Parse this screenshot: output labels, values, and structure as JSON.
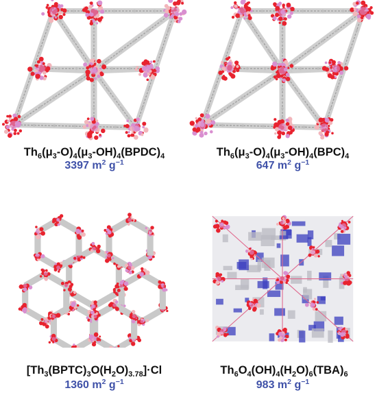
{
  "panels": [
    {
      "formula_parts": [
        {
          "t": "Th",
          "s": "n"
        },
        {
          "t": "6",
          "s": "sub"
        },
        {
          "t": "(μ",
          "s": "n"
        },
        {
          "t": "3",
          "s": "sub"
        },
        {
          "t": "-O)",
          "s": "n"
        },
        {
          "t": "4",
          "s": "sub"
        },
        {
          "t": "(μ",
          "s": "n"
        },
        {
          "t": "3",
          "s": "sub"
        },
        {
          "t": "-OH)",
          "s": "n"
        },
        {
          "t": "4",
          "s": "sub"
        },
        {
          "t": "(BPDC)",
          "s": "n"
        },
        {
          "t": "4",
          "s": "sub"
        }
      ],
      "area_value": "3397",
      "area_unit": "m",
      "area_unit_exp": "2",
      "area_g": "g",
      "area_g_exp": "−1",
      "colors": {
        "oxygen": "#e8232f",
        "thorium": "#d98fd0",
        "carbon": "#a9a9a9"
      }
    },
    {
      "formula_parts": [
        {
          "t": "Th",
          "s": "n"
        },
        {
          "t": "6",
          "s": "sub"
        },
        {
          "t": "(μ",
          "s": "n"
        },
        {
          "t": "3",
          "s": "sub"
        },
        {
          "t": "-O)",
          "s": "n"
        },
        {
          "t": "4",
          "s": "sub"
        },
        {
          "t": "(μ",
          "s": "n"
        },
        {
          "t": "3",
          "s": "sub"
        },
        {
          "t": "-OH)",
          "s": "n"
        },
        {
          "t": "4",
          "s": "sub"
        },
        {
          "t": "(BPC)",
          "s": "n"
        },
        {
          "t": "4",
          "s": "sub"
        }
      ],
      "area_value": "647",
      "area_unit": "m",
      "area_unit_exp": "2",
      "area_g": "g",
      "area_g_exp": "−1",
      "colors": {
        "oxygen": "#e8232f",
        "thorium": "#d98fd0",
        "carbon": "#a9a9a9"
      }
    },
    {
      "formula_parts": [
        {
          "t": "[Th",
          "s": "n"
        },
        {
          "t": "3",
          "s": "sub"
        },
        {
          "t": "(BPTC)",
          "s": "n"
        },
        {
          "t": "3",
          "s": "sub"
        },
        {
          "t": "O(H",
          "s": "n"
        },
        {
          "t": "2",
          "s": "sub"
        },
        {
          "t": "O)",
          "s": "n"
        },
        {
          "t": "3.78",
          "s": "sub"
        },
        {
          "t": "]·Cl",
          "s": "n"
        }
      ],
      "area_value": "1360",
      "area_unit": "m",
      "area_unit_exp": "2",
      "area_g": "g",
      "area_g_exp": "−1",
      "colors": {
        "oxygen": "#e8232f",
        "thorium": "#d98fd0",
        "carbon": "#a9a9a9"
      }
    },
    {
      "formula_parts": [
        {
          "t": "Th",
          "s": "n"
        },
        {
          "t": "6",
          "s": "sub"
        },
        {
          "t": "O",
          "s": "n"
        },
        {
          "t": "4",
          "s": "sub"
        },
        {
          "t": "(OH)",
          "s": "n"
        },
        {
          "t": "4",
          "s": "sub"
        },
        {
          "t": "(H",
          "s": "n"
        },
        {
          "t": "2",
          "s": "sub"
        },
        {
          "t": "O)",
          "s": "n"
        },
        {
          "t": "6",
          "s": "sub"
        },
        {
          "t": "(TBA)",
          "s": "n"
        },
        {
          "t": "6",
          "s": "sub"
        }
      ],
      "area_value": "983",
      "area_unit": "m",
      "area_unit_exp": "2",
      "area_g": "g",
      "area_g_exp": "−1",
      "colors": {
        "oxygen": "#e8232f",
        "thorium": "#d98fd0",
        "carbon": "#a9a9a9",
        "nitrogen": "#3b3fbf"
      }
    }
  ]
}
